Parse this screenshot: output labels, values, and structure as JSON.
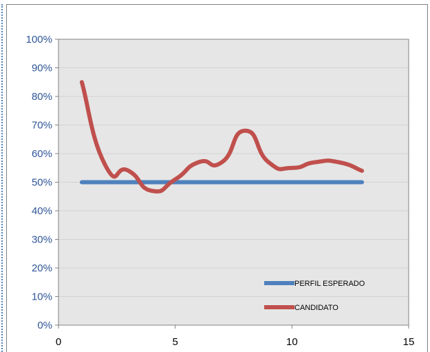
{
  "chart_data": {
    "type": "line",
    "xlim": [
      0,
      15
    ],
    "ylim": [
      0,
      100
    ],
    "x_ticks": [
      "0",
      "5",
      "10",
      "15"
    ],
    "y_ticks": [
      "0%",
      "10%",
      "20%",
      "30%",
      "40%",
      "50%",
      "60%",
      "70%",
      "80%",
      "90%",
      "100%"
    ],
    "grid": true,
    "legend_position": "bottom-right",
    "series": [
      {
        "name": "PERFIL ESPERADO",
        "color": "#4f81bd",
        "x": [
          1,
          2,
          3,
          4,
          5,
          6,
          7,
          8,
          9,
          10,
          11,
          12,
          13
        ],
        "y": [
          50,
          50,
          50,
          50,
          50,
          50,
          50,
          50,
          50,
          50,
          50,
          50,
          50
        ]
      },
      {
        "name": "CANDIDATO",
        "color": "#c0504d",
        "x": [
          1,
          2,
          3,
          4,
          5,
          6,
          7,
          8,
          9,
          10,
          11,
          12,
          13
        ],
        "y": [
          85,
          56,
          54,
          47,
          51,
          57,
          57,
          68,
          57,
          55,
          57,
          57,
          54
        ]
      }
    ],
    "colors": {
      "plot_background": "#e6e6e6",
      "ytick": "#2f5597",
      "xtick": "#000000"
    }
  }
}
